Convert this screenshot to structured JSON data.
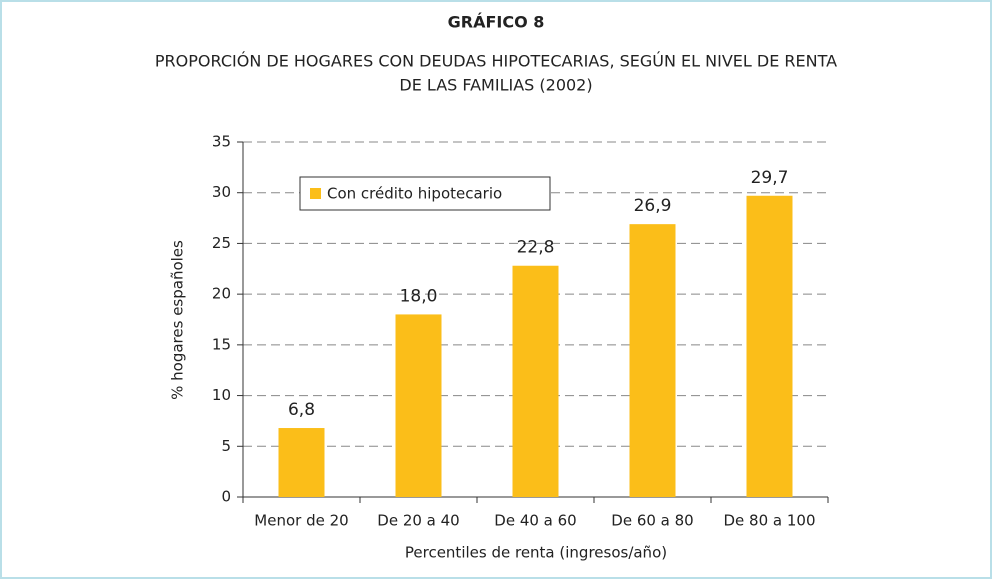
{
  "chart_data": {
    "type": "bar",
    "title": "GRÁFICO 8",
    "subtitle": [
      "PROPORCIÓN DE HOGARES CON DEUDAS HIPOTECARIAS, SEGÚN EL NIVEL DE RENTA",
      "DE LAS FAMILIAS (2002)"
    ],
    "categories": [
      "Menor de 20",
      "De 20 a 40",
      "De 40 a 60",
      "De 60 a 80",
      "De 80 a 100"
    ],
    "series": [
      {
        "name": "Con crédito hipotecario",
        "color": "#fbbe19",
        "values": [
          6.8,
          18.0,
          22.8,
          26.9,
          29.7
        ],
        "value_labels": [
          "6,8",
          "18,0",
          "22,8",
          "26,9",
          "29,7"
        ]
      }
    ],
    "ylim": [
      0,
      35
    ],
    "yticks": [
      0,
      5,
      10,
      15,
      20,
      25,
      30,
      35
    ],
    "y_label": "% hogares españoles",
    "x_label": "Percentiles de renta (ingresos/año)",
    "grid": true,
    "legend": "upper left"
  }
}
